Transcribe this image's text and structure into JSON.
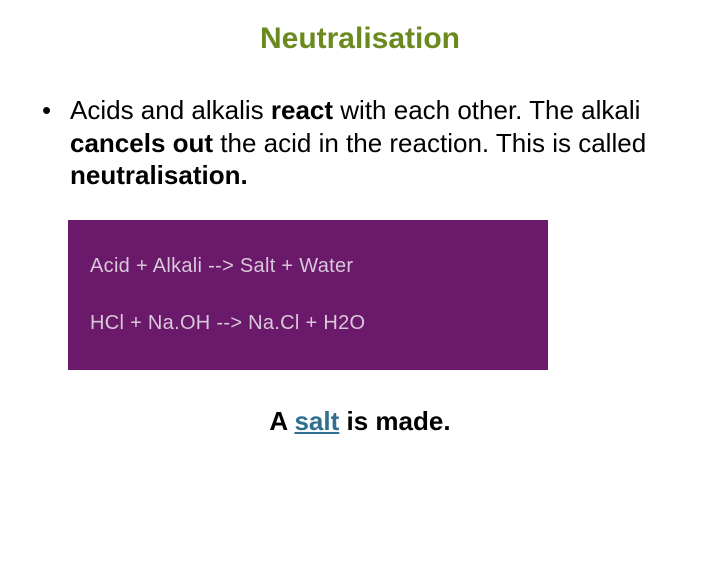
{
  "title": {
    "text": "Neutralisation",
    "color": "#6a8a1f",
    "fontsize": 30
  },
  "bullet": {
    "seg1": "Acids and alkalis ",
    "seg2_bold": "react",
    "seg3": " with each other. The alkali ",
    "seg4_bold": "cancels out",
    "seg5": " the acid in the reaction. This is called ",
    "seg6_bold": "neutralisation.",
    "text_color": "#000000",
    "fontsize": 26
  },
  "equation_box": {
    "bg_color": "#6b1a6b",
    "text_color": "#d8c8d8",
    "line1": "Acid  + Alkali --> Salt + Water",
    "line2": "HCl + Na.OH --> Na.Cl + H2O",
    "fontsize": 20
  },
  "footer": {
    "seg1": "A ",
    "salt_text": "salt",
    "salt_color": "#2f6f8f",
    "seg3": " is made.",
    "fontsize": 26
  }
}
